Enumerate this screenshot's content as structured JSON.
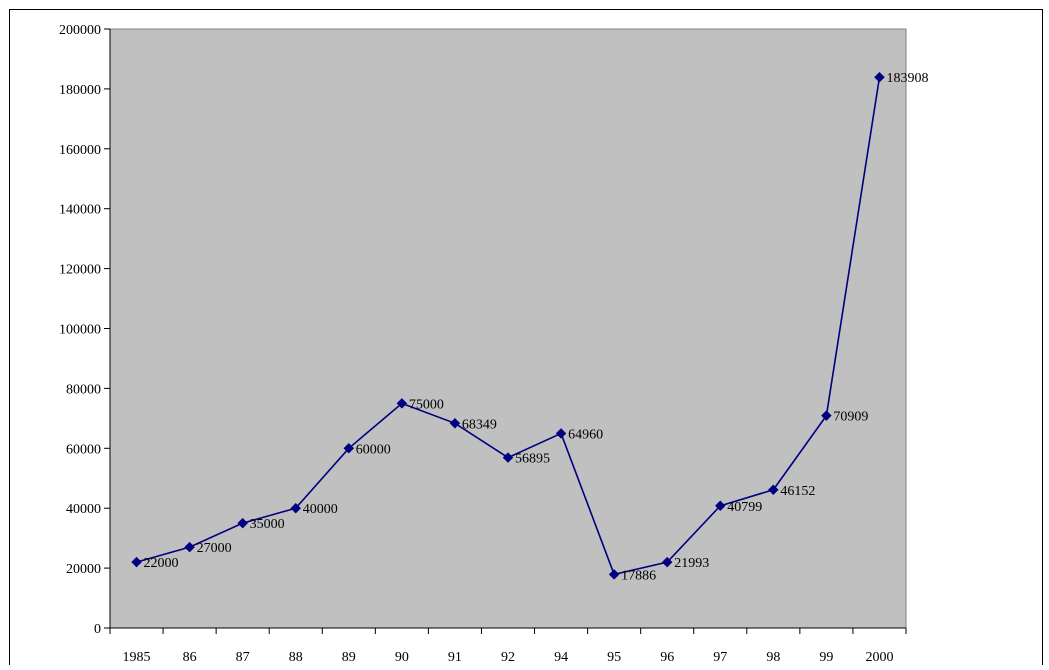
{
  "chart_data": {
    "type": "line",
    "title": "",
    "xlabel": "",
    "ylabel": "",
    "categories": [
      "1985",
      "86",
      "87",
      "88",
      "89",
      "90",
      "91",
      "92",
      "94",
      "95",
      "96",
      "97",
      "98",
      "99",
      "2000"
    ],
    "series": [
      {
        "values": [
          22000,
          27000,
          35000,
          40000,
          60000,
          75000,
          68349,
          56895,
          64960,
          17886,
          21993,
          40799,
          46152,
          70909,
          183908
        ],
        "data_labels": [
          "22000",
          "27000",
          "35000",
          "40000",
          "60000",
          "75000",
          "68349",
          "56895",
          "64960",
          "17886",
          "21993",
          "40799",
          "46152",
          "70909",
          "183908"
        ]
      }
    ],
    "ylim": [
      0,
      200000
    ],
    "y_ticks": [
      "0",
      "20000",
      "40000",
      "60000",
      "80000",
      "100000",
      "120000",
      "140000",
      "160000",
      "180000",
      "200000"
    ],
    "grid": false,
    "legend": "none",
    "colors": {
      "plot_background": "#c0c0c0",
      "line": "#000080",
      "marker": "#000080",
      "frame": "#000000"
    }
  }
}
